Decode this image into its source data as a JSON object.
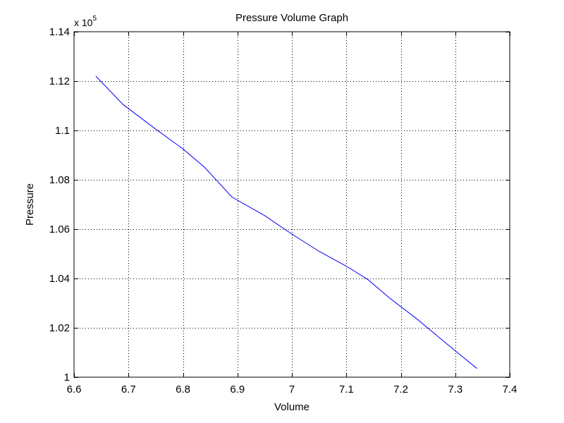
{
  "chart_data": {
    "type": "line",
    "title": "Pressure Volume Graph",
    "xlabel": "Volume",
    "ylabel": "Pressure",
    "y_multiplier_prefix": "x 10",
    "y_multiplier_exponent": "5",
    "xlim": [
      6.6,
      7.4
    ],
    "ylim": [
      1.0,
      1.14
    ],
    "xticks": [
      6.6,
      6.7,
      6.8,
      6.9,
      7.0,
      7.1,
      7.2,
      7.3,
      7.4
    ],
    "xtick_labels": [
      "6.6",
      "6.7",
      "6.8",
      "6.9",
      "7",
      "7.1",
      "7.2",
      "7.3",
      "7.4"
    ],
    "yticks": [
      1.0,
      1.02,
      1.04,
      1.06,
      1.08,
      1.1,
      1.12,
      1.14
    ],
    "ytick_labels": [
      "1",
      "1.02",
      "1.04",
      "1.06",
      "1.08",
      "1.1",
      "1.12",
      "1.14"
    ],
    "grid": true,
    "grid_style": "dotted",
    "line_color": "#0000ff",
    "series": [
      {
        "x": [
          6.64,
          6.69,
          6.75,
          6.8,
          6.84,
          6.89,
          6.95,
          7.0,
          7.05,
          7.1,
          7.14,
          7.18,
          7.23,
          7.29,
          7.34
        ],
        "y": [
          1.122,
          1.1105,
          1.1005,
          1.0925,
          1.085,
          1.073,
          1.0655,
          1.058,
          1.051,
          1.045,
          1.0395,
          1.032,
          1.0235,
          1.0125,
          1.0035
        ]
      }
    ]
  }
}
